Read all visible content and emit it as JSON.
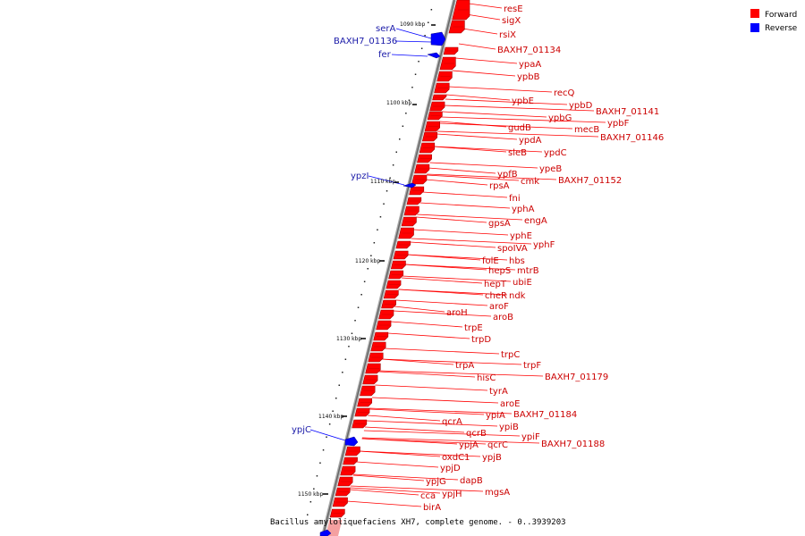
{
  "caption": "Bacillus amyloliquefaciens XH7, complete genome. - 0..3939203",
  "legend": [
    {
      "label": "Forward",
      "color": "#ff0000"
    },
    {
      "label": "Reverse",
      "color": "#0000ff"
    }
  ],
  "colors": {
    "forward": "#ff0000",
    "reverse": "#0000ff",
    "backbone": "#808080",
    "forward_label": "#cc0000",
    "reverse_label": "#1a1aa8"
  },
  "ticks": [
    "1090 kbp",
    "1100 kbp",
    "1110 kbp",
    "1120 kbp",
    "1130 kbp",
    "1140 kbp",
    "1150 kbp"
  ],
  "forward_genes": [
    "resE",
    "sigX",
    "rsiX",
    "BAXH7_01134",
    "ypaA",
    "ypbB",
    "recQ",
    "ypbE",
    "ypbD",
    "BAXH7_01141",
    "ypbG",
    "ypbF",
    "gudB",
    "mecB",
    "BAXH7_01146",
    "ypdA",
    "sleB",
    "ypdC",
    "ypeB",
    "ypfB",
    "cmk",
    "BAXH7_01152",
    "rpsA",
    "fni",
    "yphA",
    "engA",
    "gpsA",
    "yphE",
    "spoIVA",
    "yphF",
    "folE",
    "hbs",
    "hepS",
    "mtrB",
    "hepT",
    "ubiE",
    "cheR",
    "ndk",
    "aroF",
    "aroH",
    "aroB",
    "trpE",
    "trpD",
    "trpC",
    "trpF",
    "trpA",
    "BAXH7_01179",
    "hisC",
    "tyrA",
    "aroE",
    "ypiA",
    "BAXH7_01184",
    "qcrA",
    "ypiB",
    "qcrB",
    "ypiF",
    "ypjA",
    "qcrC",
    "BAXH7_01188",
    "oxdC1",
    "ypjB",
    "ypjD",
    "ypjG",
    "dapB",
    "mgsA",
    "cca",
    "ypjH",
    "birA"
  ],
  "reverse_genes": [
    "serA",
    "BAXH7_01136",
    "fer",
    "ypzI",
    "ypjC"
  ]
}
